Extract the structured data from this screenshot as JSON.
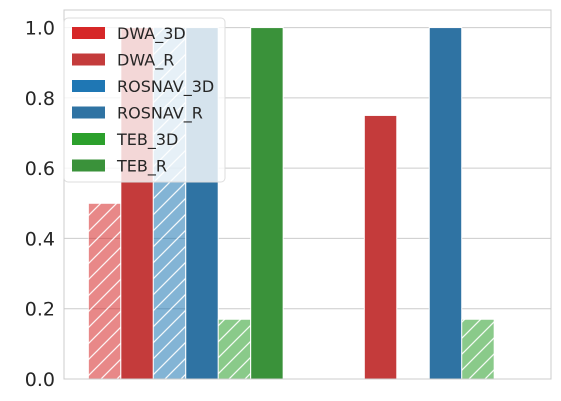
{
  "chart_data": {
    "type": "bar",
    "categories": [
      "",
      ""
    ],
    "ylim": [
      0,
      1.05
    ],
    "yticks": [
      "0.0",
      "0.2",
      "0.4",
      "0.6",
      "0.8",
      "1.0"
    ],
    "grid": true,
    "legend_position": "top-left",
    "series": [
      {
        "name": "DWA_3D",
        "color": "#d62728",
        "hatch": true,
        "values": [
          0.5,
          0.0
        ]
      },
      {
        "name": "DWA_R",
        "color": "#c43b3b",
        "hatch": false,
        "values": [
          1.0,
          0.75
        ]
      },
      {
        "name": "ROSNAV_3D",
        "color": "#1f77b4",
        "hatch": true,
        "values": [
          1.0,
          0.0
        ]
      },
      {
        "name": "ROSNAV_R",
        "color": "#2f73a3",
        "hatch": false,
        "values": [
          1.0,
          1.0
        ]
      },
      {
        "name": "TEB_3D",
        "color": "#2ca02c",
        "hatch": true,
        "values": [
          0.17,
          0.17
        ]
      },
      {
        "name": "TEB_R",
        "color": "#3a923a",
        "hatch": false,
        "values": [
          1.0,
          0.0
        ]
      }
    ]
  }
}
